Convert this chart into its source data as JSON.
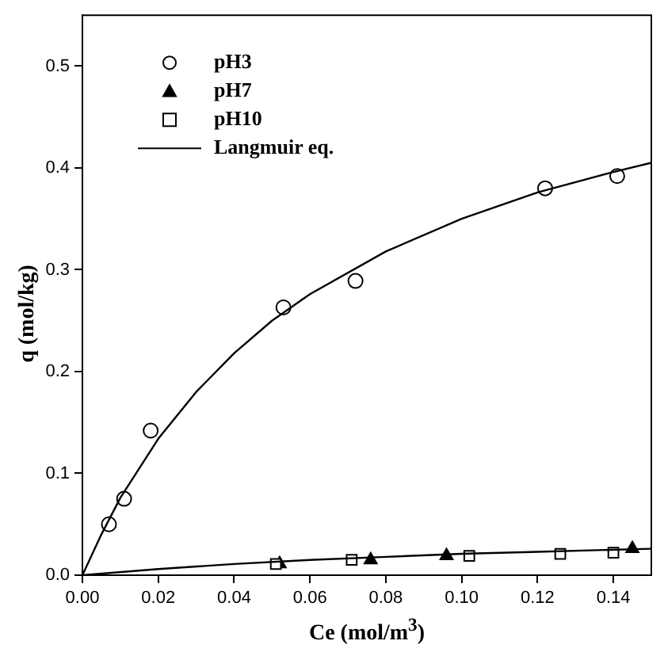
{
  "chart_data": {
    "type": "scatter",
    "xlabel": "Ce (mol/m$^{3}$)",
    "ylabel": "q (mol/kg)",
    "xlim": [
      0,
      0.15
    ],
    "ylim": [
      0,
      0.55
    ],
    "xticks": [
      {
        "value": 0,
        "label": "0.00"
      },
      {
        "value": 0.02,
        "label": "0.02"
      },
      {
        "value": 0.04,
        "label": "0.04"
      },
      {
        "value": 0.06,
        "label": "0.06"
      },
      {
        "value": 0.08,
        "label": "0.08"
      },
      {
        "value": 0.1,
        "label": "0.10"
      },
      {
        "value": 0.12,
        "label": "0.12"
      },
      {
        "value": 0.14,
        "label": "0.14"
      }
    ],
    "yticks": [
      {
        "value": 0,
        "label": "0.0"
      },
      {
        "value": 0.1,
        "label": "0.1"
      },
      {
        "value": 0.2,
        "label": "0.2"
      },
      {
        "value": 0.3,
        "label": "0.3"
      },
      {
        "value": 0.4,
        "label": "0.4"
      },
      {
        "value": 0.5,
        "label": "0.5"
      }
    ],
    "grid": false,
    "legend": "top left",
    "series": [
      {
        "name": "pH3",
        "color": "#000000",
        "marker": "circle",
        "x": [
          0.007,
          0.011,
          0.018,
          0.053,
          0.072,
          0.122,
          0.141
        ],
        "values": [
          0.05,
          0.075,
          0.142,
          0.263,
          0.289,
          0.38,
          0.392
        ]
      },
      {
        "name": "pH7",
        "color": "#000000",
        "marker": "triangle",
        "x": [
          0.052,
          0.076,
          0.096,
          0.145
        ],
        "values": [
          0.011,
          0.015,
          0.019,
          0.026
        ]
      },
      {
        "name": "pH10",
        "color": "#000000",
        "marker": "square",
        "x": [
          0.051,
          0.071,
          0.102,
          0.126,
          0.14
        ],
        "values": [
          0.011,
          0.015,
          0.019,
          0.021,
          0.022
        ]
      },
      {
        "name": "Langmuir eq.",
        "type": "line",
        "color": "#000000",
        "marker": "none",
        "line_style": "solid",
        "x": [
          0,
          0.005,
          0.01,
          0.02,
          0.03,
          0.04,
          0.05,
          0.06,
          0.08,
          0.1,
          0.12,
          0.14,
          0.15
        ],
        "values": [
          0,
          0.04,
          0.076,
          0.134,
          0.18,
          0.218,
          0.25,
          0.276,
          0.318,
          0.35,
          0.376,
          0.396,
          0.405
        ]
      },
      {
        "type": "line",
        "color": "#000000",
        "marker": "none",
        "line_style": "solid",
        "x": [
          0,
          0.02,
          0.04,
          0.06,
          0.08,
          0.1,
          0.12,
          0.15
        ],
        "values": [
          0,
          0.006,
          0.011,
          0.015,
          0.018,
          0.021,
          0.023,
          0.026
        ]
      }
    ]
  }
}
